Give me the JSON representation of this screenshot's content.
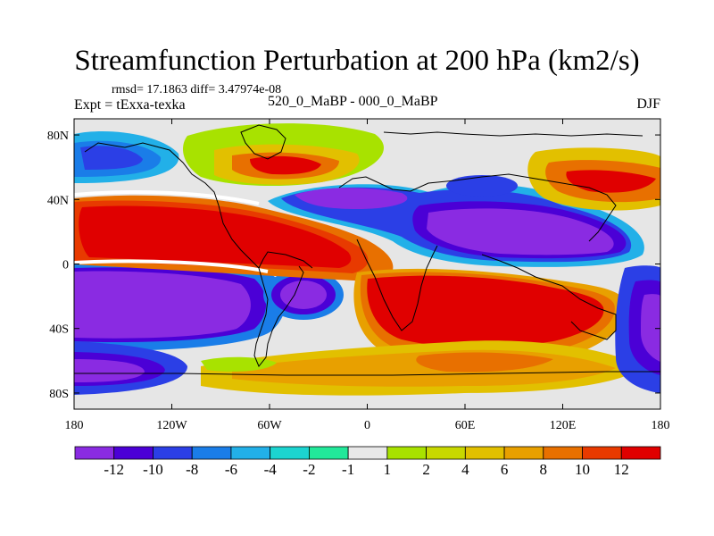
{
  "title": "Streamfunction Perturbation at 200 hPa (km2/s)",
  "stats": "rmsd= 17.1863 diff= 3.47974e-08",
  "experiment": "Expt = tExxa-texka",
  "subtitle": "520_0_MaBP - 000_0_MaBP",
  "season": "DJF",
  "lat_ticks": [
    {
      "lat": 80,
      "label": "80N"
    },
    {
      "lat": 40,
      "label": "40N"
    },
    {
      "lat": 0,
      "label": "0"
    },
    {
      "lat": -40,
      "label": "40S"
    },
    {
      "lat": -80,
      "label": "80S"
    }
  ],
  "lon_ticks": [
    {
      "lon": -180,
      "label": "180"
    },
    {
      "lon": -120,
      "label": "120W"
    },
    {
      "lon": -60,
      "label": "60W"
    },
    {
      "lon": 0,
      "label": "0"
    },
    {
      "lon": 60,
      "label": "60E"
    },
    {
      "lon": 120,
      "label": "120E"
    },
    {
      "lon": 180,
      "label": "180"
    }
  ],
  "lat_range": [
    -90,
    90
  ],
  "lon_range": [
    -180,
    180
  ],
  "colorbar": {
    "colors": [
      "#8a2be2",
      "#4b00d6",
      "#2b3fe6",
      "#1a7de8",
      "#22b0e8",
      "#1cd4d0",
      "#22e89a",
      "#e8e8e8",
      "#a8e200",
      "#c8d800",
      "#e2c000",
      "#e8a000",
      "#e87000",
      "#e83a00",
      "#e00000"
    ],
    "labels": [
      {
        "boundary": 1,
        "text": "-12"
      },
      {
        "boundary": 2,
        "text": "-10"
      },
      {
        "boundary": 3,
        "text": "-8"
      },
      {
        "boundary": 4,
        "text": "-6"
      },
      {
        "boundary": 5,
        "text": "-4"
      },
      {
        "boundary": 6,
        "text": "-2"
      },
      {
        "boundary": 7,
        "text": "-1"
      },
      {
        "boundary": 8,
        "text": "1"
      },
      {
        "boundary": 9,
        "text": "2"
      },
      {
        "boundary": 10,
        "text": "4"
      },
      {
        "boundary": 11,
        "text": "6"
      },
      {
        "boundary": 12,
        "text": "8"
      },
      {
        "boundary": 13,
        "text": "10"
      },
      {
        "boundary": 14,
        "text": "12"
      }
    ]
  }
}
